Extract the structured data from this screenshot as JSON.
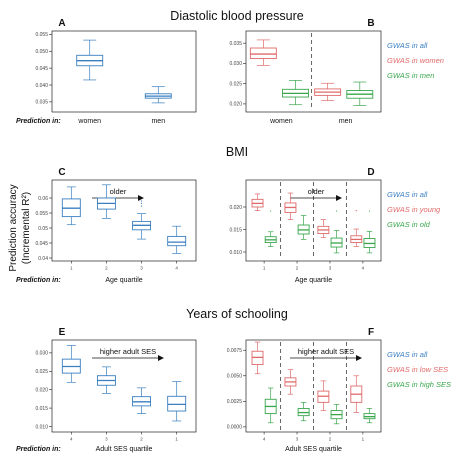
{
  "section_titles": [
    "Diastolic blood pressure",
    "BMI",
    "Years of schooling"
  ],
  "y_axis_label": [
    "Prediction accuracy",
    "(Incremental R²)"
  ],
  "colors": {
    "all": "#3a7fc0",
    "women_young_lowses": "#e06a6a",
    "men_old_highses": "#3aa64c",
    "dashed_line": "#555555"
  },
  "chart_data": [
    {
      "panel": "A",
      "type": "box",
      "row_label": "Prediction in:",
      "categories": [
        "women",
        "men"
      ],
      "ylim": [
        0.032,
        0.056
      ],
      "yticks": [
        0.035,
        0.04,
        0.045,
        0.05,
        0.055
      ],
      "ytick_labels": [
        "0.035",
        "0.040",
        "0.045",
        "0.050",
        "0.055"
      ],
      "series": [
        {
          "color": "all",
          "boxes": [
            {
              "x": 1,
              "whisker_low": 0.0415,
              "q1": 0.0457,
              "median": 0.0472,
              "q3": 0.0488,
              "whisker_high": 0.0533
            },
            {
              "x": 2,
              "whisker_low": 0.0347,
              "q1": 0.0361,
              "median": 0.0367,
              "q3": 0.0374,
              "whisker_high": 0.0395
            }
          ]
        }
      ]
    },
    {
      "panel": "B",
      "type": "box",
      "row_label": "",
      "categories": [
        "women",
        "men"
      ],
      "ylim": [
        0.018,
        0.038
      ],
      "yticks": [
        0.02,
        0.025,
        0.03,
        0.035
      ],
      "ytick_labels": [
        "0.020",
        "0.025",
        "0.030",
        "0.035"
      ],
      "legend": [
        "GWAS in all",
        "GWAS in women",
        "GWAS in men"
      ],
      "series": [
        {
          "color": "women_young_lowses",
          "boxes": [
            {
              "x": 0.72,
              "whisker_low": 0.0295,
              "q1": 0.0312,
              "median": 0.0323,
              "q3": 0.0338,
              "whisker_high": 0.0358
            }
          ]
        },
        {
          "color": "men_old_highses",
          "boxes": [
            {
              "x": 1.22,
              "whisker_low": 0.0198,
              "q1": 0.0217,
              "median": 0.0226,
              "q3": 0.0236,
              "whisker_high": 0.0258
            },
            {
              "x": 2.22,
              "whisker_low": 0.0196,
              "q1": 0.0214,
              "median": 0.0224,
              "q3": 0.0233,
              "whisker_high": 0.0254
            }
          ]
        },
        {
          "color": "women_young_lowses",
          "boxes": [
            {
              "x": 1.72,
              "whisker_low": 0.0208,
              "q1": 0.0221,
              "median": 0.0229,
              "q3": 0.0237,
              "whisker_high": 0.0251
            }
          ]
        }
      ],
      "dashed_x": [
        1.47
      ]
    },
    {
      "panel": "C",
      "type": "box",
      "row_label": "Prediction in:",
      "xlabel": "Age quartile",
      "categories": [
        "1",
        "2",
        "3",
        "4"
      ],
      "annotation": "older",
      "ylim": [
        0.039,
        0.066
      ],
      "yticks": [
        0.04,
        0.045,
        0.05,
        0.055,
        0.06
      ],
      "ytick_labels": [
        "0.04",
        "0.045",
        "0.05",
        "0.055",
        "0.06"
      ],
      "series": [
        {
          "color": "all",
          "boxes": [
            {
              "x": 1,
              "whisker_low": 0.0511,
              "q1": 0.0538,
              "median": 0.0566,
              "q3": 0.0597,
              "whisker_high": 0.0637
            },
            {
              "x": 2,
              "whisker_low": 0.0532,
              "q1": 0.0563,
              "median": 0.0582,
              "q3": 0.06,
              "whisker_high": 0.0644
            },
            {
              "x": 3,
              "whisker_low": 0.0463,
              "q1": 0.0494,
              "median": 0.0509,
              "q3": 0.0522,
              "whisker_high": 0.0548,
              "outliers": [
                0.0573,
                0.0582,
                0.059
              ]
            },
            {
              "x": 4,
              "whisker_low": 0.0415,
              "q1": 0.0441,
              "median": 0.0453,
              "q3": 0.0472,
              "whisker_high": 0.0506
            }
          ]
        }
      ]
    },
    {
      "panel": "D",
      "type": "box",
      "row_label": "",
      "xlabel": "Age quartile",
      "categories": [
        "1",
        "2",
        "3",
        "4"
      ],
      "annotation": "older",
      "legend": [
        "GWAS in all",
        "GWAS in young",
        "GWAS in old"
      ],
      "ylim": [
        0.008,
        0.026
      ],
      "yticks": [
        0.01,
        0.015,
        0.02
      ],
      "ytick_labels": [
        "0.010",
        "0.015",
        "0.020"
      ],
      "series": [
        {
          "color": "women_young_lowses",
          "boxes": [
            {
              "x": 0.8,
              "whisker_low": 0.0192,
              "q1": 0.02,
              "median": 0.0208,
              "q3": 0.0217,
              "whisker_high": 0.0229
            },
            {
              "x": 1.8,
              "whisker_low": 0.0172,
              "q1": 0.0188,
              "median": 0.0199,
              "q3": 0.0209,
              "whisker_high": 0.0231
            },
            {
              "x": 2.8,
              "whisker_low": 0.0132,
              "q1": 0.0141,
              "median": 0.0149,
              "q3": 0.0157,
              "whisker_high": 0.0172
            },
            {
              "x": 3.8,
              "whisker_low": 0.0112,
              "q1": 0.0121,
              "median": 0.0128,
              "q3": 0.0136,
              "whisker_high": 0.0151,
              "outliers": [
                0.0192
              ]
            }
          ]
        },
        {
          "color": "men_old_highses",
          "boxes": [
            {
              "x": 1.2,
              "whisker_low": 0.0112,
              "q1": 0.0121,
              "median": 0.0127,
              "q3": 0.0134,
              "whisker_high": 0.0145,
              "outliers": [
                0.0191
              ]
            },
            {
              "x": 2.2,
              "whisker_low": 0.0128,
              "q1": 0.014,
              "median": 0.0149,
              "q3": 0.016,
              "whisker_high": 0.0181
            },
            {
              "x": 3.2,
              "whisker_low": 0.0098,
              "q1": 0.0111,
              "median": 0.012,
              "q3": 0.0131,
              "whisker_high": 0.0148,
              "outliers": [
                0.0191
              ]
            },
            {
              "x": 4.2,
              "whisker_low": 0.0098,
              "q1": 0.011,
              "median": 0.0119,
              "q3": 0.013,
              "whisker_high": 0.0146,
              "outliers": [
                0.0191
              ]
            }
          ]
        }
      ],
      "dashed_x": [
        1.5,
        2.5,
        3.5
      ]
    },
    {
      "panel": "E",
      "type": "box",
      "row_label": "Prediction in:",
      "xlabel": "Adult SES quartile",
      "categories": [
        "4",
        "3",
        "2",
        "1"
      ],
      "annotation": "higher adult SES",
      "ylim": [
        0.0085,
        0.0335
      ],
      "yticks": [
        0.01,
        0.015,
        0.02,
        0.025,
        0.03
      ],
      "ytick_labels": [
        "0.010",
        "0.015",
        "0.020",
        "0.025",
        "0.030"
      ],
      "series": [
        {
          "color": "all",
          "boxes": [
            {
              "x": 1,
              "whisker_low": 0.022,
              "q1": 0.0245,
              "median": 0.0263,
              "q3": 0.0283,
              "whisker_high": 0.032
            },
            {
              "x": 2,
              "whisker_low": 0.019,
              "q1": 0.0212,
              "median": 0.0225,
              "q3": 0.0238,
              "whisker_high": 0.0262
            },
            {
              "x": 3,
              "whisker_low": 0.0135,
              "q1": 0.0156,
              "median": 0.0167,
              "q3": 0.0181,
              "whisker_high": 0.0205
            },
            {
              "x": 4,
              "whisker_low": 0.0115,
              "q1": 0.0142,
              "median": 0.016,
              "q3": 0.0182,
              "whisker_high": 0.0222
            }
          ]
        }
      ]
    },
    {
      "panel": "F",
      "type": "box",
      "row_label": "",
      "xlabel": "Adult SES quartile",
      "categories": [
        "4",
        "3",
        "2",
        "1"
      ],
      "annotation": "higher adult SES",
      "legend": [
        "GWAS in all",
        "GWAS in low SES",
        "GWAS in high SES"
      ],
      "ylim": [
        -0.0005,
        0.0085
      ],
      "yticks": [
        0.0,
        0.0025,
        0.005,
        0.0075
      ],
      "ytick_labels": [
        "0.0000",
        "0.0025",
        "0.0050",
        "0.0075"
      ],
      "series": [
        {
          "color": "women_young_lowses",
          "boxes": [
            {
              "x": 0.8,
              "whisker_low": 0.0052,
              "q1": 0.0061,
              "median": 0.0068,
              "q3": 0.0074,
              "whisker_high": 0.0083
            },
            {
              "x": 1.8,
              "whisker_low": 0.0032,
              "q1": 0.004,
              "median": 0.0044,
              "q3": 0.0048,
              "whisker_high": 0.0056
            },
            {
              "x": 2.8,
              "whisker_low": 0.0016,
              "q1": 0.0024,
              "median": 0.003,
              "q3": 0.0035,
              "whisker_high": 0.0045
            },
            {
              "x": 3.8,
              "whisker_low": 0.0014,
              "q1": 0.0024,
              "median": 0.0032,
              "q3": 0.004,
              "whisker_high": 0.005
            }
          ]
        },
        {
          "color": "men_old_highses",
          "boxes": [
            {
              "x": 1.2,
              "whisker_low": 0.0004,
              "q1": 0.0013,
              "median": 0.002,
              "q3": 0.0027,
              "whisker_high": 0.0038
            },
            {
              "x": 2.2,
              "whisker_low": 0.0006,
              "q1": 0.0011,
              "median": 0.0014,
              "q3": 0.0018,
              "whisker_high": 0.0024
            },
            {
              "x": 3.2,
              "whisker_low": 0.0003,
              "q1": 0.0008,
              "median": 0.0012,
              "q3": 0.0016,
              "whisker_high": 0.0022
            },
            {
              "x": 4.2,
              "whisker_low": 0.0004,
              "q1": 0.0008,
              "median": 0.001,
              "q3": 0.0013,
              "whisker_high": 0.0018
            }
          ]
        }
      ],
      "dashed_x": [
        1.5,
        2.5,
        3.5
      ]
    }
  ]
}
